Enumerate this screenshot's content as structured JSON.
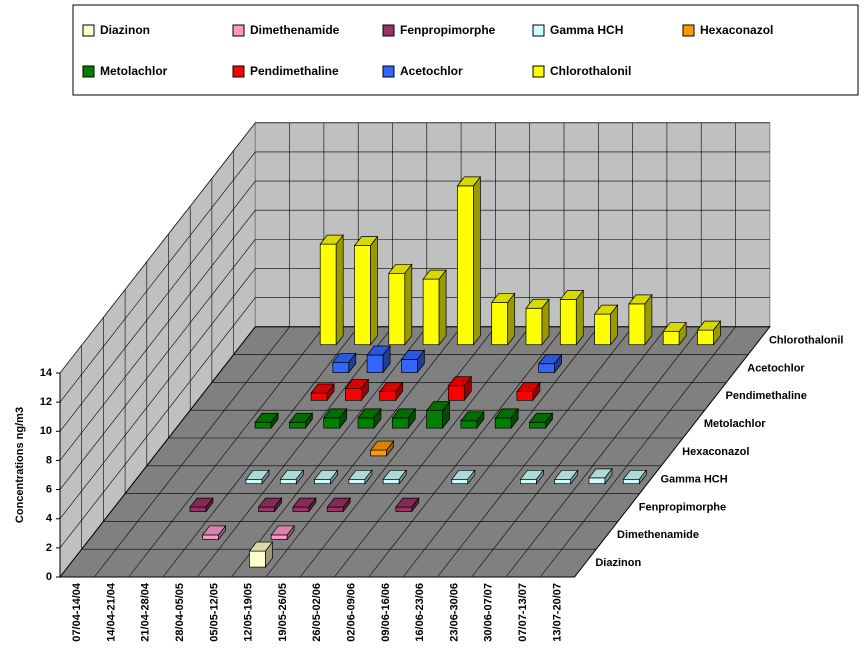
{
  "chart_data": {
    "type": "bar3d",
    "y_label": "Concentrations ng/m3",
    "categories": [
      "07/04-14/04",
      "14/04-21/04",
      "21/04-28/04",
      "28/04-05/05",
      "05/05-12/05",
      "12/05-19/05",
      "19/05-26/05",
      "26/05-02/06",
      "02/06-09/06",
      "09/06-16/06",
      "16/06-23/06",
      "23/06-30/06",
      "30/06-07/07",
      "07/07-13/07",
      "13/07-20/07"
    ],
    "ylim": [
      0,
      14
    ],
    "yticks": [
      0,
      2,
      4,
      6,
      8,
      10,
      12,
      14
    ],
    "grid": true,
    "series": [
      {
        "name": "Diazinon",
        "color": "#ffffcc",
        "values": [
          null,
          null,
          null,
          null,
          null,
          1.1,
          null,
          null,
          null,
          null,
          null,
          null,
          null,
          null,
          null
        ]
      },
      {
        "name": "Dimethenamide",
        "color": "#ff99cc",
        "values": [
          null,
          null,
          null,
          0.3,
          null,
          0.3,
          null,
          null,
          null,
          null,
          null,
          null,
          null,
          null,
          null
        ]
      },
      {
        "name": "Fenpropimorphe",
        "color": "#993366",
        "values": [
          null,
          null,
          0.3,
          null,
          0.3,
          0.3,
          0.3,
          null,
          0.3,
          null,
          null,
          null,
          null,
          null,
          null
        ]
      },
      {
        "name": "Gamma HCH",
        "color": "#ccffff",
        "values": [
          null,
          null,
          null,
          0.3,
          0.3,
          0.3,
          0.3,
          0.3,
          null,
          0.3,
          null,
          0.3,
          0.3,
          0.4,
          0.3
        ]
      },
      {
        "name": "Hexaconazol",
        "color": "#ff9900",
        "values": [
          null,
          null,
          null,
          null,
          null,
          null,
          0.4,
          null,
          null,
          null,
          null,
          null,
          null,
          null,
          null
        ]
      },
      {
        "name": "Metolachlor",
        "color": "#008000",
        "values": [
          null,
          null,
          0.4,
          0.4,
          0.7,
          0.7,
          0.7,
          1.2,
          0.5,
          0.7,
          0.4,
          null,
          null,
          null,
          null
        ]
      },
      {
        "name": "Pendimethaline",
        "color": "#ff0000",
        "values": [
          null,
          null,
          null,
          0.5,
          0.8,
          0.6,
          null,
          1.0,
          null,
          0.6,
          null,
          null,
          null,
          null,
          null
        ]
      },
      {
        "name": "Acetochlor",
        "color": "#3366ff",
        "values": [
          null,
          null,
          null,
          0.7,
          1.2,
          0.9,
          null,
          null,
          null,
          0.6,
          null,
          null,
          null,
          null,
          null
        ]
      },
      {
        "name": "Chlorothalonil",
        "color": "#ffff00",
        "values": [
          null,
          null,
          6.9,
          6.8,
          4.9,
          4.5,
          10.9,
          2.9,
          2.5,
          3.1,
          2.1,
          2.8,
          0.9,
          1.0,
          null
        ]
      }
    ]
  }
}
